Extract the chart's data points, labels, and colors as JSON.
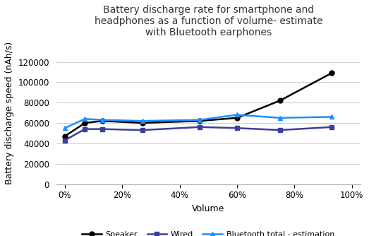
{
  "title": "Battery discharge rate for smartphone and\nheadphones as a function of volume- estimate\nwith Bluetooth earphones",
  "xlabel": "Volume",
  "ylabel": "Battery discharge speed (nAh/s)",
  "speaker_x": [
    0,
    0.07,
    0.13,
    0.27,
    0.47,
    0.6,
    0.75,
    0.93
  ],
  "speaker_y": [
    47000,
    60000,
    62000,
    60000,
    62000,
    65000,
    82000,
    109000
  ],
  "wired_x": [
    0,
    0.07,
    0.13,
    0.27,
    0.47,
    0.6,
    0.75,
    0.93
  ],
  "wired_y": [
    43000,
    54000,
    54000,
    53000,
    56000,
    55000,
    53000,
    56000
  ],
  "bluetooth_x": [
    0,
    0.07,
    0.13,
    0.27,
    0.47,
    0.6,
    0.75,
    0.93
  ],
  "bluetooth_y": [
    55000,
    64000,
    63000,
    62000,
    63000,
    68000,
    65000,
    66000
  ],
  "speaker_color": "#000000",
  "wired_color": "#3d3d9e",
  "bluetooth_color": "#1e90ff",
  "ylim": [
    0,
    140000
  ],
  "yticks": [
    0,
    20000,
    40000,
    60000,
    80000,
    100000,
    120000
  ],
  "xticks": [
    0.0,
    0.2,
    0.4,
    0.6,
    0.8,
    1.0
  ],
  "xtick_labels": [
    "0%",
    "20%",
    "40%",
    "60%",
    "80%",
    "100%"
  ],
  "xlim": [
    -0.03,
    1.03
  ],
  "legend_speaker": "Speaker",
  "legend_wired": "Wired",
  "legend_bluetooth": "Bluetooth total - estimation",
  "bg_color": "#ffffff",
  "grid_color": "#d0d0d0",
  "title_fontsize": 10,
  "label_fontsize": 9,
  "tick_fontsize": 8.5
}
